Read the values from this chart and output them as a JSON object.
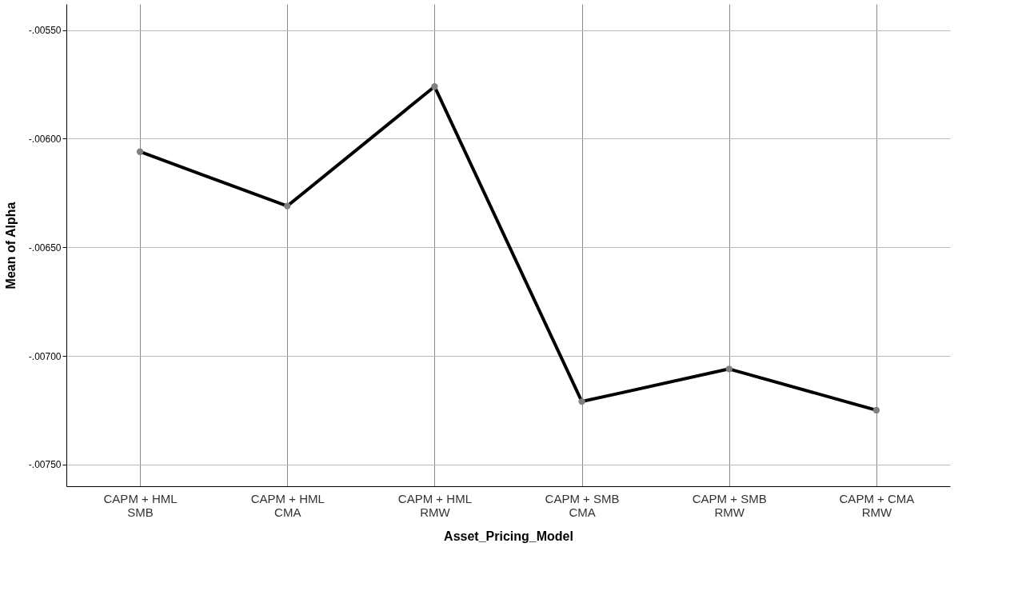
{
  "chart_data": {
    "type": "line",
    "xlabel": "Asset_Pricing_Model",
    "ylabel": "Mean of Alpha",
    "categories": [
      "CAPM + HML\nSMB",
      "CAPM + HML\nCMA",
      "CAPM + HML\nRMW",
      "CAPM + SMB\nCMA",
      "CAPM + SMB\nRMW",
      "CAPM + CMA\nRMW"
    ],
    "series": [
      {
        "color": "#000000",
        "values": [
          -0.00606,
          -0.00631,
          -0.00576,
          -0.00721,
          -0.00706,
          -0.00725
        ]
      }
    ],
    "ylim": [
      -0.0076,
      -0.00538
    ],
    "yticks": [
      {
        "value": -0.0075,
        "label": "-.00750"
      },
      {
        "value": -0.007,
        "label": "-.00700"
      },
      {
        "value": -0.0065,
        "label": "-.00650"
      },
      {
        "value": -0.006,
        "label": "-.00600"
      },
      {
        "value": -0.0055,
        "label": "-.00550"
      }
    ],
    "grid": true,
    "marker": "circle",
    "line_style": "solid",
    "legend": false
  }
}
